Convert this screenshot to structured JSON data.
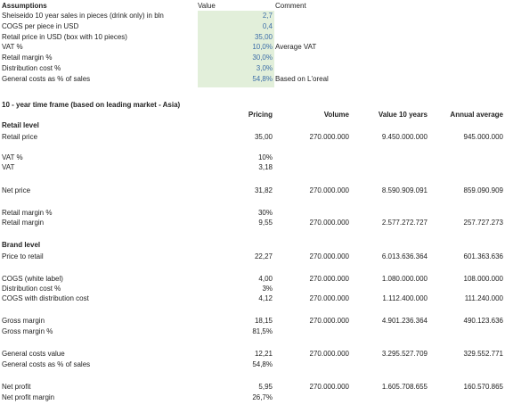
{
  "assumptions": {
    "title": "Assumptions",
    "value_header": "Value",
    "comment_header": "Comment",
    "rows": [
      {
        "label": "Sheiseido 10 year sales in pieces (drink only) in bln",
        "value": "2,7"
      },
      {
        "label": "COGS per piece in USD",
        "value": "0,4"
      },
      {
        "label": "Retail price in USD (box with 10 pieces)",
        "value": "35,00"
      },
      {
        "label": "VAT %",
        "value": "10,0%",
        "comment": "Average VAT"
      },
      {
        "label": "Retail margin %",
        "value": "30,0%"
      },
      {
        "label": "Distribution cost %",
        "value": "3,0%"
      },
      {
        "label": "General costs as % of sales",
        "value": "54,8%",
        "comment": "Based on L'oreal"
      }
    ]
  },
  "table": {
    "title": "10 - year time frame (based on leading market - Asia)",
    "header": {
      "pricing": "Pricing",
      "volume": "Volume",
      "value10": "Value 10 years",
      "annual": "Annual average"
    },
    "rows": [
      {
        "label": "Retail level",
        "section": true
      },
      {
        "label": "Retail price",
        "pricing": "35,00",
        "volume": "270.000.000",
        "value10": "9.450.000.000",
        "annual": "945.000.000"
      },
      {
        "label": "VAT %",
        "pricing": "10%"
      },
      {
        "label": "VAT",
        "pricing": "3,18"
      },
      {
        "label": "Net price",
        "pricing": "31,82",
        "volume": "270.000.000",
        "value10": "8.590.909.091",
        "annual": "859.090.909"
      },
      {
        "label": "Retail margin %",
        "pricing": "30%"
      },
      {
        "label": "Retail margin",
        "pricing": "9,55",
        "volume": "270.000.000",
        "value10": "2.577.272.727",
        "annual": "257.727.273"
      },
      {
        "label": "Brand level",
        "section": true
      },
      {
        "label": "Price to retail",
        "pricing": "22,27",
        "volume": "270.000.000",
        "value10": "6.013.636.364",
        "annual": "601.363.636"
      },
      {
        "label": "COGS (white label)",
        "pricing": "4,00",
        "volume": "270.000.000",
        "value10": "1.080.000.000",
        "annual": "108.000.000"
      },
      {
        "label": "Distribution cost %",
        "pricing": "3%"
      },
      {
        "label": "COGS with distribution cost",
        "pricing": "4,12",
        "volume": "270.000.000",
        "value10": "1.112.400.000",
        "annual": "111.240.000"
      },
      {
        "label": "Gross margin",
        "pricing": "18,15",
        "volume": "270.000.000",
        "value10": "4.901.236.364",
        "annual": "490.123.636"
      },
      {
        "label": "Gross margin %",
        "pricing": "81,5%"
      },
      {
        "label": "General costs value",
        "pricing": "12,21",
        "volume": "270.000.000",
        "value10": "3.295.527.709",
        "annual": "329.552.771"
      },
      {
        "label": "General costs as % of sales",
        "pricing": "54,8%"
      },
      {
        "label": "Net profit",
        "pricing": "5,95",
        "volume": "270.000.000",
        "value10": "1.605.708.655",
        "annual": "160.570.865"
      },
      {
        "label": "Net profit margin",
        "pricing": "26,7%"
      }
    ]
  }
}
